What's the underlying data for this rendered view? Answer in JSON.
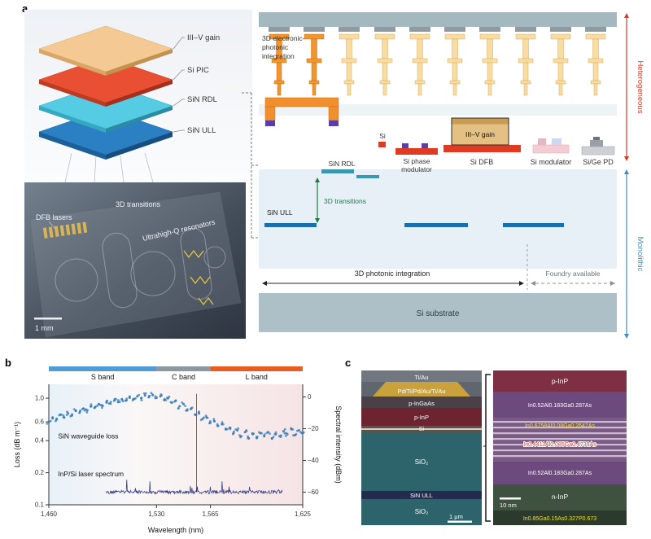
{
  "figure": {
    "panel_a_label": "a",
    "panel_b_label": "b",
    "panel_c_label": "c"
  },
  "panel_a": {
    "stack_labels": [
      "III–V gain",
      "Si PIC",
      "SiN RDL",
      "SiN ULL"
    ],
    "chip_photo": {
      "dfb": "DFB lasers",
      "transitions": "3D transitions",
      "resonators": "Ultrahigh-Q resonators",
      "scale_bar": "1 mm"
    },
    "schematic": {
      "integration_3d": "3D electronic-photonic integration",
      "si": "Si",
      "sin_rdl": "SiN RDL",
      "si_phase_modulator": "Si phase modulator",
      "iii_v_gain": "III–V gain",
      "si_dfb": "Si DFB",
      "si_modulator": "Si modulator",
      "si_ge_pd": "Si/Ge PD",
      "transitions_3d": "3D transitions",
      "sin_ull": "SiN ULL",
      "photonic_integration": "3D photonic integration",
      "foundry": "Foundry available",
      "substrate": "Si substrate",
      "heterogeneous": "Heterogeneous",
      "monolithic": "Monolithic"
    }
  },
  "chart_data": {
    "type": "scatter",
    "xlabel": "Wavelength (nm)",
    "ylabel_left": "Loss (dB m⁻¹)",
    "ylabel_right": "Spectral intensity (dBm)",
    "x_range": [
      1460,
      1625
    ],
    "x_ticks": [
      1460,
      1530,
      1565,
      1625
    ],
    "x_tick_labels": [
      "1,460",
      "1,530",
      "1,565",
      "1,625"
    ],
    "left_scale": "log",
    "left_ticks": [
      1.0,
      0.6,
      0.4,
      0.2,
      0.1
    ],
    "left_range": [
      0.1,
      1.35
    ],
    "right_ticks": [
      0,
      -20,
      -40,
      -60
    ],
    "right_range": [
      8,
      -68
    ],
    "bands": [
      {
        "label": "S band",
        "range": [
          1460,
          1530
        ],
        "color": "#4e9cd5"
      },
      {
        "label": "C band",
        "range": [
          1530,
          1565
        ],
        "color": "#8d979e"
      },
      {
        "label": "L band",
        "range": [
          1565,
          1625
        ],
        "color": "#e85c1e"
      }
    ],
    "annotations": [
      {
        "text": "SiN waveguide loss",
        "x": 1466,
        "y": 0.42
      },
      {
        "text": "InP/Si laser spectrum",
        "x": 1466,
        "y": 0.185
      }
    ],
    "series": [
      {
        "name": "SiN waveguide loss",
        "type": "scatter",
        "axis": "left",
        "color": "#3279b7",
        "points": [
          [
            1460,
            0.6
          ],
          [
            1462.5,
            0.66
          ],
          [
            1465,
            0.63
          ],
          [
            1467.5,
            0.7
          ],
          [
            1470,
            0.66
          ],
          [
            1472.5,
            0.72
          ],
          [
            1475,
            0.69
          ],
          [
            1477.5,
            0.76
          ],
          [
            1480,
            0.73
          ],
          [
            1482.5,
            0.8
          ],
          [
            1485,
            0.77
          ],
          [
            1487.5,
            0.84
          ],
          [
            1490,
            0.82
          ],
          [
            1492.5,
            0.88
          ],
          [
            1495,
            0.85
          ],
          [
            1497.5,
            0.91
          ],
          [
            1500,
            0.89
          ],
          [
            1502.5,
            0.95
          ],
          [
            1505,
            0.92
          ],
          [
            1507.5,
            0.98
          ],
          [
            1510,
            0.95
          ],
          [
            1512.5,
            1.01
          ],
          [
            1515,
            0.98
          ],
          [
            1517.5,
            1.04
          ],
          [
            1520,
            1.0
          ],
          [
            1522.5,
            1.06
          ],
          [
            1525,
            1.02
          ],
          [
            1527.5,
            1.07
          ],
          [
            1530,
            1.01
          ],
          [
            1532.5,
            1.04
          ],
          [
            1535,
            0.96
          ],
          [
            1537.5,
            1.0
          ],
          [
            1540,
            0.91
          ],
          [
            1542.5,
            0.95
          ],
          [
            1545,
            0.84
          ],
          [
            1547.5,
            0.88
          ],
          [
            1550,
            0.77
          ],
          [
            1552.5,
            0.8
          ],
          [
            1555,
            0.7
          ],
          [
            1557.5,
            0.73
          ],
          [
            1560,
            0.64
          ],
          [
            1562.5,
            0.66
          ],
          [
            1565,
            0.59
          ],
          [
            1567.5,
            0.61
          ],
          [
            1570,
            0.55
          ],
          [
            1572.5,
            0.57
          ],
          [
            1575,
            0.51
          ],
          [
            1577.5,
            0.53
          ],
          [
            1580,
            0.47
          ],
          [
            1582.5,
            0.5
          ],
          [
            1585,
            0.44
          ],
          [
            1587.5,
            0.48
          ],
          [
            1590,
            0.42
          ],
          [
            1592.5,
            0.46
          ],
          [
            1595,
            0.43
          ],
          [
            1597.5,
            0.47
          ],
          [
            1600,
            0.44
          ],
          [
            1602.5,
            0.48
          ],
          [
            1605,
            0.42
          ],
          [
            1607.5,
            0.46
          ],
          [
            1610,
            0.44
          ],
          [
            1612.5,
            0.49
          ],
          [
            1615,
            0.46
          ],
          [
            1617.5,
            0.52
          ],
          [
            1620,
            0.45
          ],
          [
            1622.5,
            0.5
          ],
          [
            1625,
            0.47
          ]
        ]
      },
      {
        "name": "InP/Si laser spectrum",
        "type": "spectrum",
        "axis": "right",
        "color": "#252f7a",
        "x_start": 1497,
        "x_end": 1612,
        "baseline_dbm": -60,
        "noise_dbm": 2.2,
        "peak": {
          "x": 1556,
          "dbm": 2
        }
      }
    ]
  },
  "panel_c": {
    "sem": {
      "labels": [
        "Ti/Au",
        "Pd/Ti/Pd/Au/Ti/Au",
        "p-InGaAs",
        "p-InP",
        "Si",
        "SiO₂",
        "SiN ULL",
        "SiO₂"
      ],
      "scale_bar": "1 μm"
    },
    "tem": {
      "labels": [
        "p-InP",
        "In0.52Al0.183Ga0.287As",
        "In0.6758Al0.08Ga0.2642As",
        "In0.4411Al0.085Ga0.4739As",
        "In0.52Al0.183Ga0.287As",
        "n-InP",
        "In0.85Ga0.15As0.327P0.673"
      ],
      "scale_bar": "10 nm"
    }
  }
}
